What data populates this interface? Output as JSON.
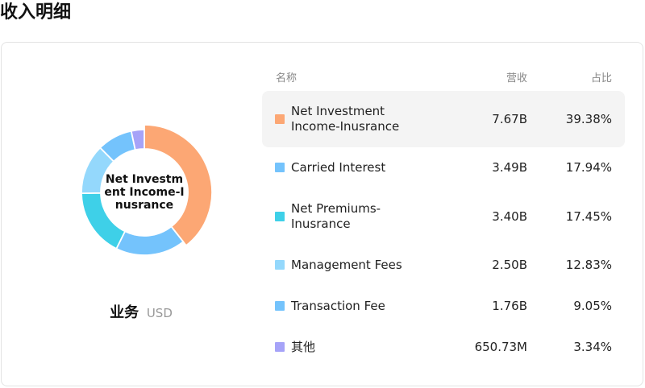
{
  "page": {
    "title": "收入明细"
  },
  "donut": {
    "center_label": "Net Investment Income-Inusrance"
  },
  "business": {
    "label": "业务",
    "unit": "USD"
  },
  "table": {
    "headers": {
      "name": "名称",
      "revenue": "营收",
      "share": "占比"
    },
    "rows": [
      {
        "name": "Net Investment Income-Inusrance",
        "revenue": "7.67B",
        "share": "39.38%",
        "color": "#fca774",
        "active": true
      },
      {
        "name": "Carried Interest",
        "revenue": "3.49B",
        "share": "17.94%",
        "color": "#74c3fc",
        "active": false
      },
      {
        "name": "Net Premiums-Inusrance",
        "revenue": "3.40B",
        "share": "17.45%",
        "color": "#3ed0e8",
        "active": false
      },
      {
        "name": "Management Fees",
        "revenue": "2.50B",
        "share": "12.83%",
        "color": "#94d8fc",
        "active": false
      },
      {
        "name": "Transaction Fee",
        "revenue": "1.76B",
        "share": "9.05%",
        "color": "#74c3fc",
        "active": false
      },
      {
        "name": "其他",
        "revenue": "650.73M",
        "share": "3.34%",
        "color": "#a6a3f8",
        "active": false
      }
    ]
  },
  "chart_data": {
    "type": "pie",
    "donut": true,
    "unit": "USD",
    "categories": [
      "Net Investment Income-Inusrance",
      "Carried Interest",
      "Net Premiums-Inusrance",
      "Management Fees",
      "Transaction Fee",
      "其他"
    ],
    "values": [
      39.38,
      17.94,
      17.45,
      12.83,
      9.05,
      3.34
    ],
    "revenues": [
      "7.67B",
      "3.49B",
      "3.40B",
      "2.50B",
      "1.76B",
      "650.73M"
    ],
    "colors": [
      "#fca774",
      "#74c3fc",
      "#3ed0e8",
      "#94d8fc",
      "#74c3fc",
      "#a6a3f8"
    ]
  }
}
